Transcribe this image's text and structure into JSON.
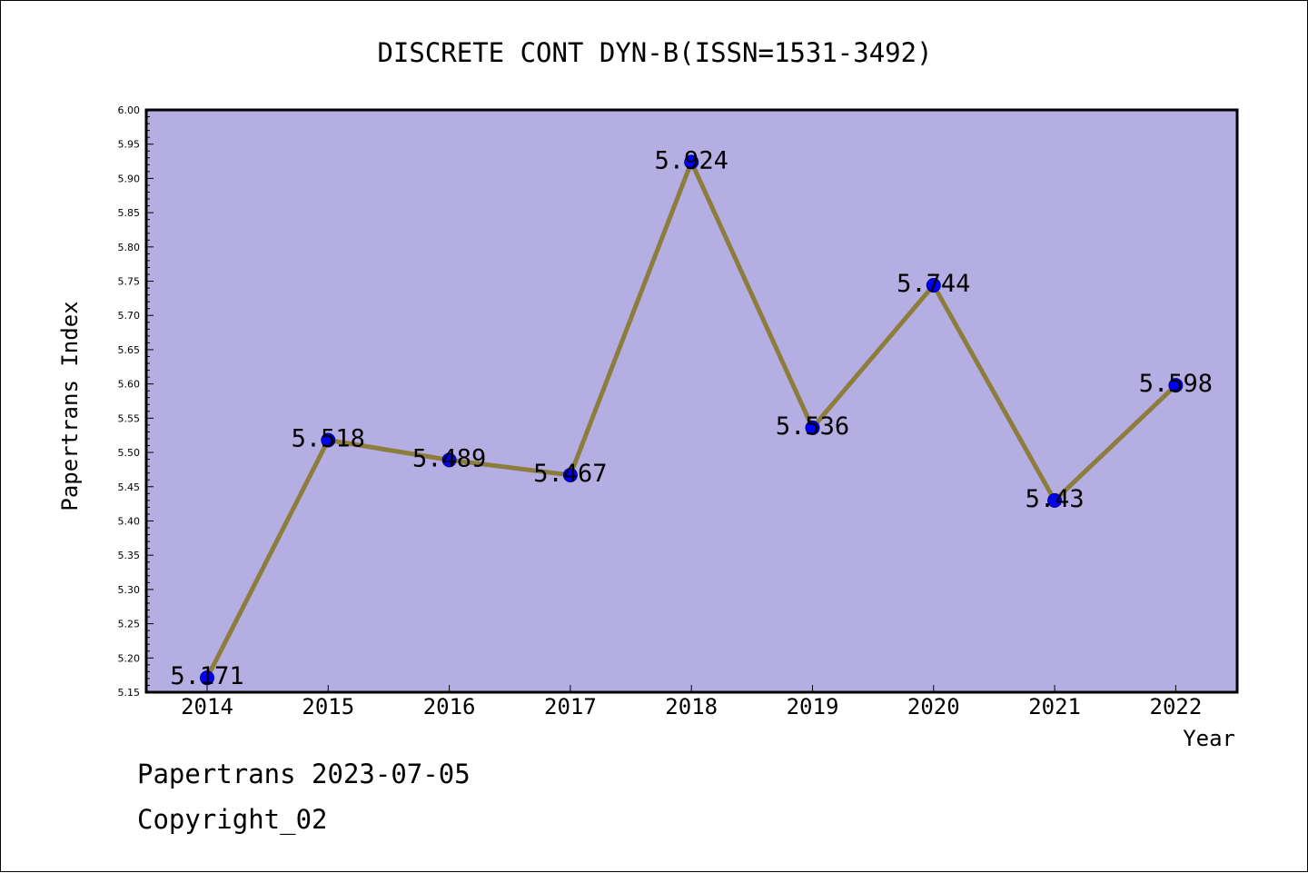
{
  "chart_data": {
    "type": "line",
    "title": "DISCRETE CONT DYN-B(ISSN=1531-3492)",
    "xlabel": "Year",
    "ylabel": "Papertrans Index",
    "categories": [
      "2014",
      "2015",
      "2016",
      "2017",
      "2018",
      "2019",
      "2020",
      "2021",
      "2022"
    ],
    "values": [
      5.171,
      5.518,
      5.489,
      5.467,
      5.924,
      5.536,
      5.744,
      5.43,
      5.598
    ],
    "data_labels": [
      "5.171",
      "5.518",
      "5.489",
      "5.467",
      "5.924",
      "5.536",
      "5.744",
      "5.43",
      "5.598"
    ],
    "ylim": [
      5.15,
      6.0
    ],
    "yticks": [
      "5.15",
      "5.20",
      "5.25",
      "5.30",
      "5.35",
      "5.40",
      "5.45",
      "5.50",
      "5.55",
      "5.60",
      "5.65",
      "5.70",
      "5.75",
      "5.80",
      "5.85",
      "5.90",
      "5.95",
      "6.00"
    ],
    "grid": false,
    "legend": "none",
    "colors": {
      "plot_background": "#b5aee2",
      "line": "#8c7d3c",
      "marker": "#0000ff",
      "marker_edge": "#000080"
    }
  },
  "footer": {
    "line1": "Papertrans 2023-07-05",
    "line2": "Copyright_02"
  }
}
